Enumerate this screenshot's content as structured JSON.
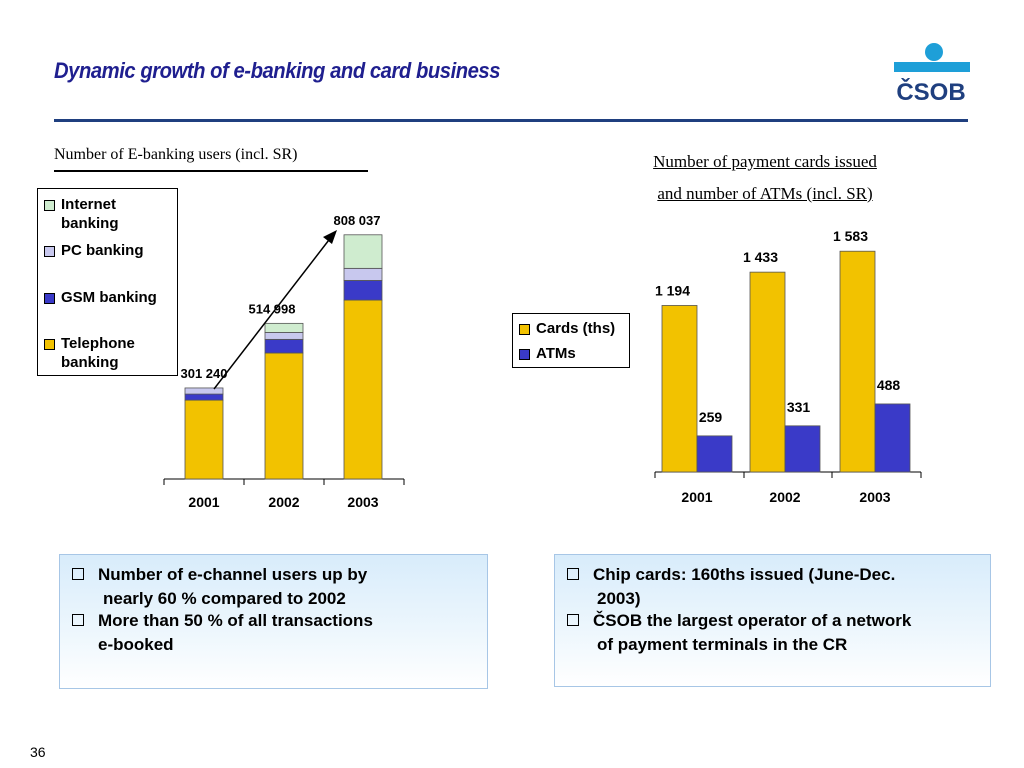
{
  "slide": {
    "title": "Dynamic growth of e-banking and card business",
    "page_number": "36",
    "logo_text": "ČSOB",
    "accent_color": "#1f1f8f",
    "logo_color": "#1e9fd8"
  },
  "left_chart": {
    "title": "Number of E-banking users (incl. SR)"
  },
  "right_chart": {
    "title_line1": "Number of payment cards issued",
    "title_line2": "and number of ATMs (incl. SR)"
  },
  "bullets_left": [
    {
      "line1": "Number of e-channel users up by",
      "line2": "nearly 60 % compared to 2002"
    },
    {
      "line1": "More than 50 % of all transactions",
      "line2": "e-booked"
    }
  ],
  "bullets_right": [
    {
      "line1": "Chip cards:  160ths issued (June-Dec.",
      "line2": "2003)"
    },
    {
      "line1": "ČSOB the largest operator of a network",
      "line2": "of payment terminals in the CR"
    }
  ],
  "chart_data": [
    {
      "type": "bar",
      "stacked": true,
      "title": "Number of E-banking users (incl. SR)",
      "categories": [
        "2001",
        "2002",
        "2003"
      ],
      "totals": [
        301240,
        514998,
        808037
      ],
      "total_labels": [
        "301 240",
        "514 998",
        "808 037"
      ],
      "series": [
        {
          "name": "Telephone banking",
          "color": "#f2c200",
          "values": [
            261000,
            417000,
            592000
          ]
        },
        {
          "name": "GSM banking",
          "color": "#3a3ac8",
          "values": [
            20000,
            45000,
            65000
          ]
        },
        {
          "name": "PC banking",
          "color": "#c8c8ee",
          "values": [
            20240,
            23000,
            40000
          ]
        },
        {
          "name": "Internet banking",
          "color": "#cfeccf",
          "values": [
            0,
            29998,
            111037
          ]
        }
      ],
      "legend_labels": [
        {
          "line1": "Internet",
          "line2": "banking",
          "color": "#cfeccf"
        },
        {
          "line1": "PC banking",
          "line2": "",
          "color": "#c8c8ee"
        },
        {
          "line1": "GSM banking",
          "line2": "",
          "color": "#3a3ac8"
        },
        {
          "line1": "Telephone",
          "line2": "banking",
          "color": "#f2c200"
        }
      ],
      "ylim": [
        0,
        900000
      ],
      "legend_position": "top-left",
      "trend_arrow": true
    },
    {
      "type": "bar",
      "stacked": false,
      "title": "Number of payment cards issued and number of ATMs (incl. SR)",
      "categories": [
        "2001",
        "2002",
        "2003"
      ],
      "series": [
        {
          "name": "Cards (ths)",
          "color": "#f2c200",
          "values": [
            1194,
            1433,
            1583
          ],
          "labels": [
            "1 194",
            "1 433",
            "1 583"
          ]
        },
        {
          "name": "ATMs",
          "color": "#3a3ac8",
          "values": [
            259,
            331,
            488
          ],
          "labels": [
            "259",
            "331",
            "488"
          ]
        }
      ],
      "ylim": [
        0,
        1900
      ],
      "legend_position": "left"
    }
  ]
}
